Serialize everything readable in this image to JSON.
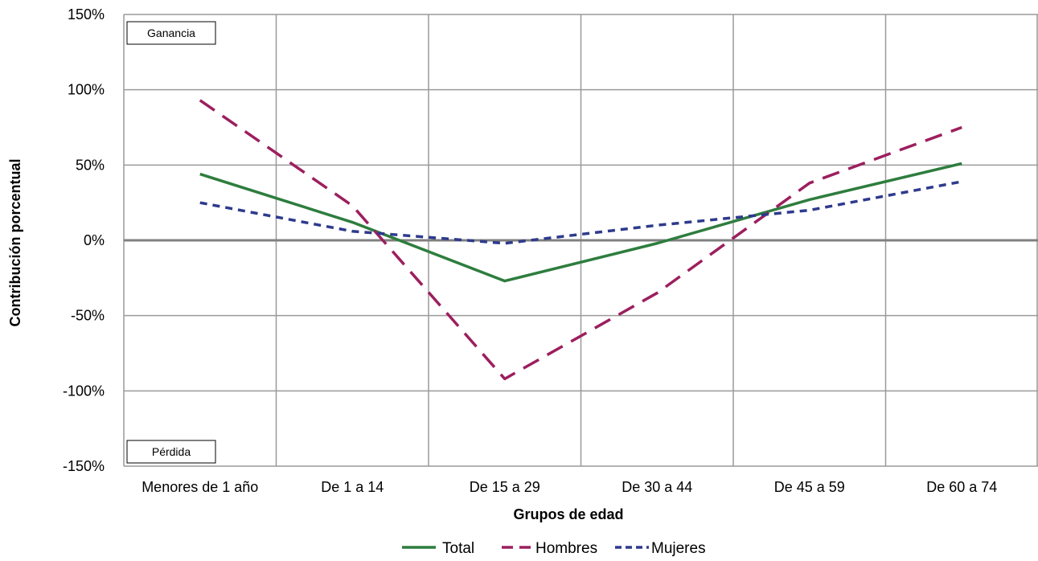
{
  "chart_data": {
    "type": "line",
    "categories": [
      "Menores de 1 año",
      "De 1 a 14",
      "De 15 a 29",
      "De 30 a 44",
      "De 45 a 59",
      "De 60 a 74"
    ],
    "series": [
      {
        "name": "Total",
        "color": "#2e7d3e",
        "dash": "solid",
        "values": [
          44,
          12,
          -27,
          -2,
          27,
          51
        ]
      },
      {
        "name": "Hombres",
        "color": "#9c1f5e",
        "dash": "long-dash",
        "values": [
          93,
          23,
          -92,
          -35,
          38,
          75
        ]
      },
      {
        "name": "Mujeres",
        "color": "#2e3a8c",
        "dash": "short-dash",
        "values": [
          25,
          6,
          -2,
          10,
          20,
          39
        ]
      }
    ],
    "xlabel": "Grupos de edad",
    "ylabel": "Contribución porcentual",
    "ylim": [
      -150,
      150
    ],
    "yticks": [
      150,
      100,
      50,
      0,
      -50,
      -100,
      -150
    ],
    "ytick_labels": [
      "150%",
      "100%",
      "50%",
      "0%",
      "-50%",
      "-100%",
      "-150%"
    ],
    "grid": true,
    "legend_position": "bottom-center",
    "annotations": {
      "top_box": "Ganancia",
      "bottom_box": "Pérdida"
    }
  }
}
